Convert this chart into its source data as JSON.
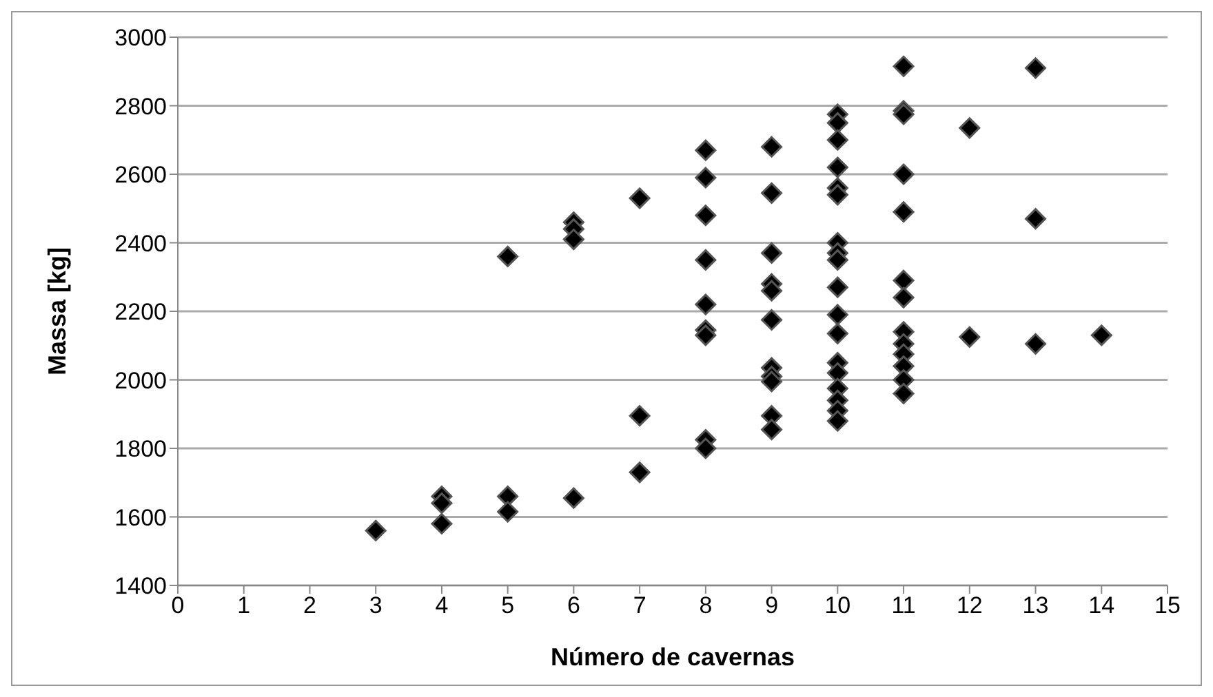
{
  "chart_data": {
    "type": "scatter",
    "xlabel": "Número de cavernas",
    "ylabel": "Massa [kg]",
    "x": [
      3,
      4,
      4,
      4,
      5,
      5,
      5,
      6,
      6,
      6,
      6,
      7,
      7,
      7,
      8,
      8,
      8,
      8,
      8,
      8,
      8,
      8,
      8,
      9,
      9,
      9,
      9,
      9,
      9,
      9,
      9,
      9,
      9,
      9,
      10,
      10,
      10,
      10,
      10,
      10,
      10,
      10,
      10,
      10,
      10,
      10,
      10,
      10,
      10,
      10,
      10,
      10,
      11,
      11,
      11,
      11,
      11,
      11,
      11,
      11,
      11,
      11,
      11,
      11,
      11,
      12,
      12,
      13,
      13,
      13,
      14
    ],
    "values": [
      1560,
      1660,
      1640,
      1580,
      2360,
      1660,
      1615,
      2460,
      2440,
      2410,
      1655,
      2530,
      1895,
      1730,
      2670,
      2590,
      2480,
      2350,
      2220,
      2145,
      2130,
      1825,
      1800,
      2680,
      2545,
      2370,
      2280,
      2260,
      2175,
      2035,
      2010,
      1995,
      1895,
      1855,
      2775,
      2750,
      2700,
      2620,
      2560,
      2540,
      2400,
      2370,
      2350,
      2270,
      2190,
      2135,
      2050,
      2020,
      1975,
      1940,
      1910,
      1880,
      2915,
      2785,
      2775,
      2600,
      2490,
      2290,
      2240,
      2140,
      2105,
      2075,
      2040,
      2000,
      1960,
      2735,
      2125,
      2910,
      2470,
      2105,
      2130
    ],
    "color": "#000000",
    "marker": "diamond",
    "grid": "y",
    "xlim": [
      0,
      15
    ],
    "xticks": [
      0,
      1,
      2,
      3,
      4,
      5,
      6,
      7,
      8,
      9,
      10,
      11,
      12,
      13,
      14,
      15
    ],
    "ylim": [
      1400,
      3000
    ],
    "yticks": [
      1400,
      1600,
      1800,
      2000,
      2200,
      2400,
      2600,
      2800,
      3000
    ]
  }
}
